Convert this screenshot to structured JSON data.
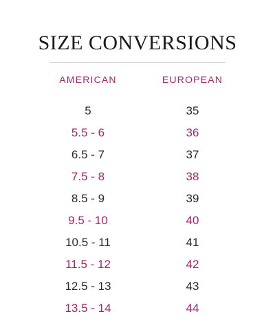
{
  "title": "SIZE CONVERSIONS",
  "colors": {
    "accent": "#a8236f",
    "text": "#2b2b2b",
    "divider": "#cfcfcf"
  },
  "table": {
    "headers": {
      "american": "AMERICAN",
      "european": "EUROPEAN"
    },
    "rows": [
      {
        "american": "5",
        "european": "35"
      },
      {
        "american": "5.5 - 6",
        "european": "36"
      },
      {
        "american": "6.5 - 7",
        "european": "37"
      },
      {
        "american": "7.5 - 8",
        "european": "38"
      },
      {
        "american": "8.5 - 9",
        "european": "39"
      },
      {
        "american": "9.5 - 10",
        "european": "40"
      },
      {
        "american": "10.5 - 11",
        "european": "41"
      },
      {
        "american": "11.5 - 12",
        "european": "42"
      },
      {
        "american": "12.5 - 13",
        "european": "43"
      },
      {
        "american": "13.5 - 14",
        "european": "44"
      }
    ]
  }
}
